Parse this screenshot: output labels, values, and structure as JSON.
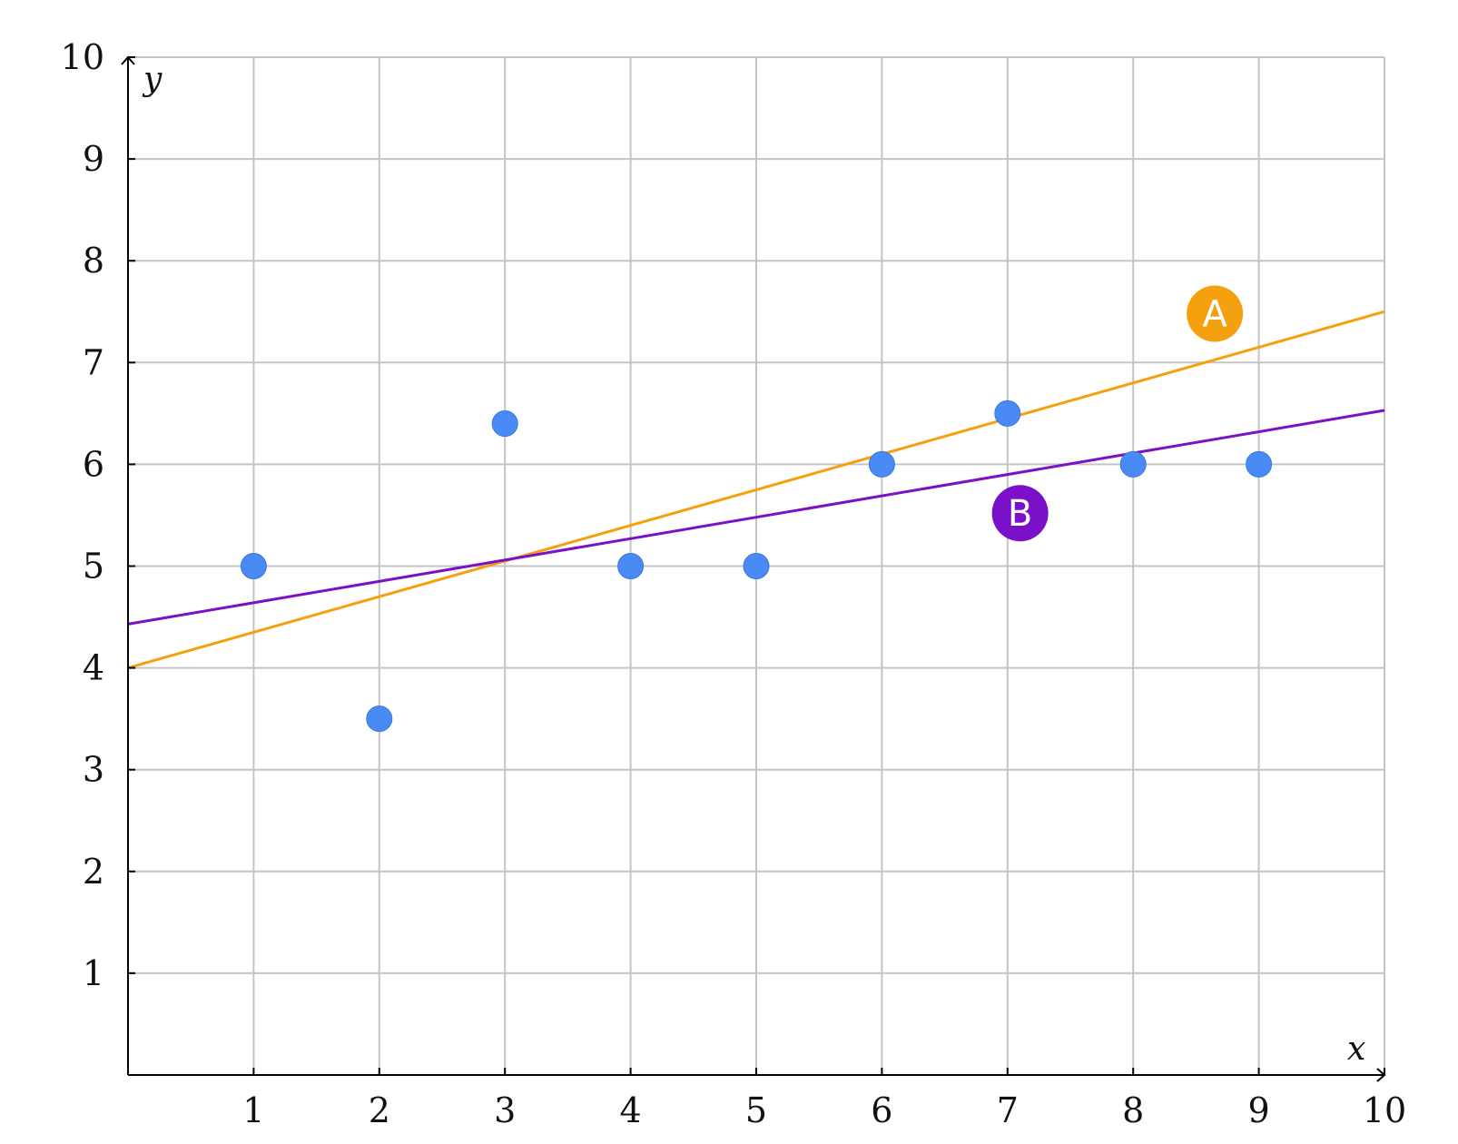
{
  "chart_data": {
    "type": "scatter",
    "xlabel": "x",
    "ylabel": "y",
    "xlim": [
      0,
      10
    ],
    "ylim": [
      0,
      10
    ],
    "x_ticks": [
      "1",
      "2",
      "3",
      "4",
      "5",
      "6",
      "7",
      "8",
      "9",
      "10"
    ],
    "y_ticks": [
      "1",
      "2",
      "3",
      "4",
      "5",
      "6",
      "7",
      "8",
      "9",
      "10"
    ],
    "grid": true,
    "points": [
      {
        "x": 1,
        "y": 5
      },
      {
        "x": 2,
        "y": 3.5
      },
      {
        "x": 3,
        "y": 6.4
      },
      {
        "x": 4,
        "y": 5
      },
      {
        "x": 5,
        "y": 5
      },
      {
        "x": 6,
        "y": 6
      },
      {
        "x": 7,
        "y": 6.5
      },
      {
        "x": 8,
        "y": 6
      },
      {
        "x": 9,
        "y": 6
      }
    ],
    "point_color": "#4a8af4",
    "lines": [
      {
        "name": "A",
        "x1": 0,
        "y1": 4.0,
        "x2": 10,
        "y2": 7.5,
        "color": "#f5a00f",
        "label_x": 8.65,
        "label_y": 7.48
      },
      {
        "name": "B",
        "x1": 0,
        "y1": 4.43,
        "x2": 10,
        "y2": 6.53,
        "color": "#7a10c8",
        "label_x": 7.1,
        "label_y": 5.52
      }
    ]
  }
}
